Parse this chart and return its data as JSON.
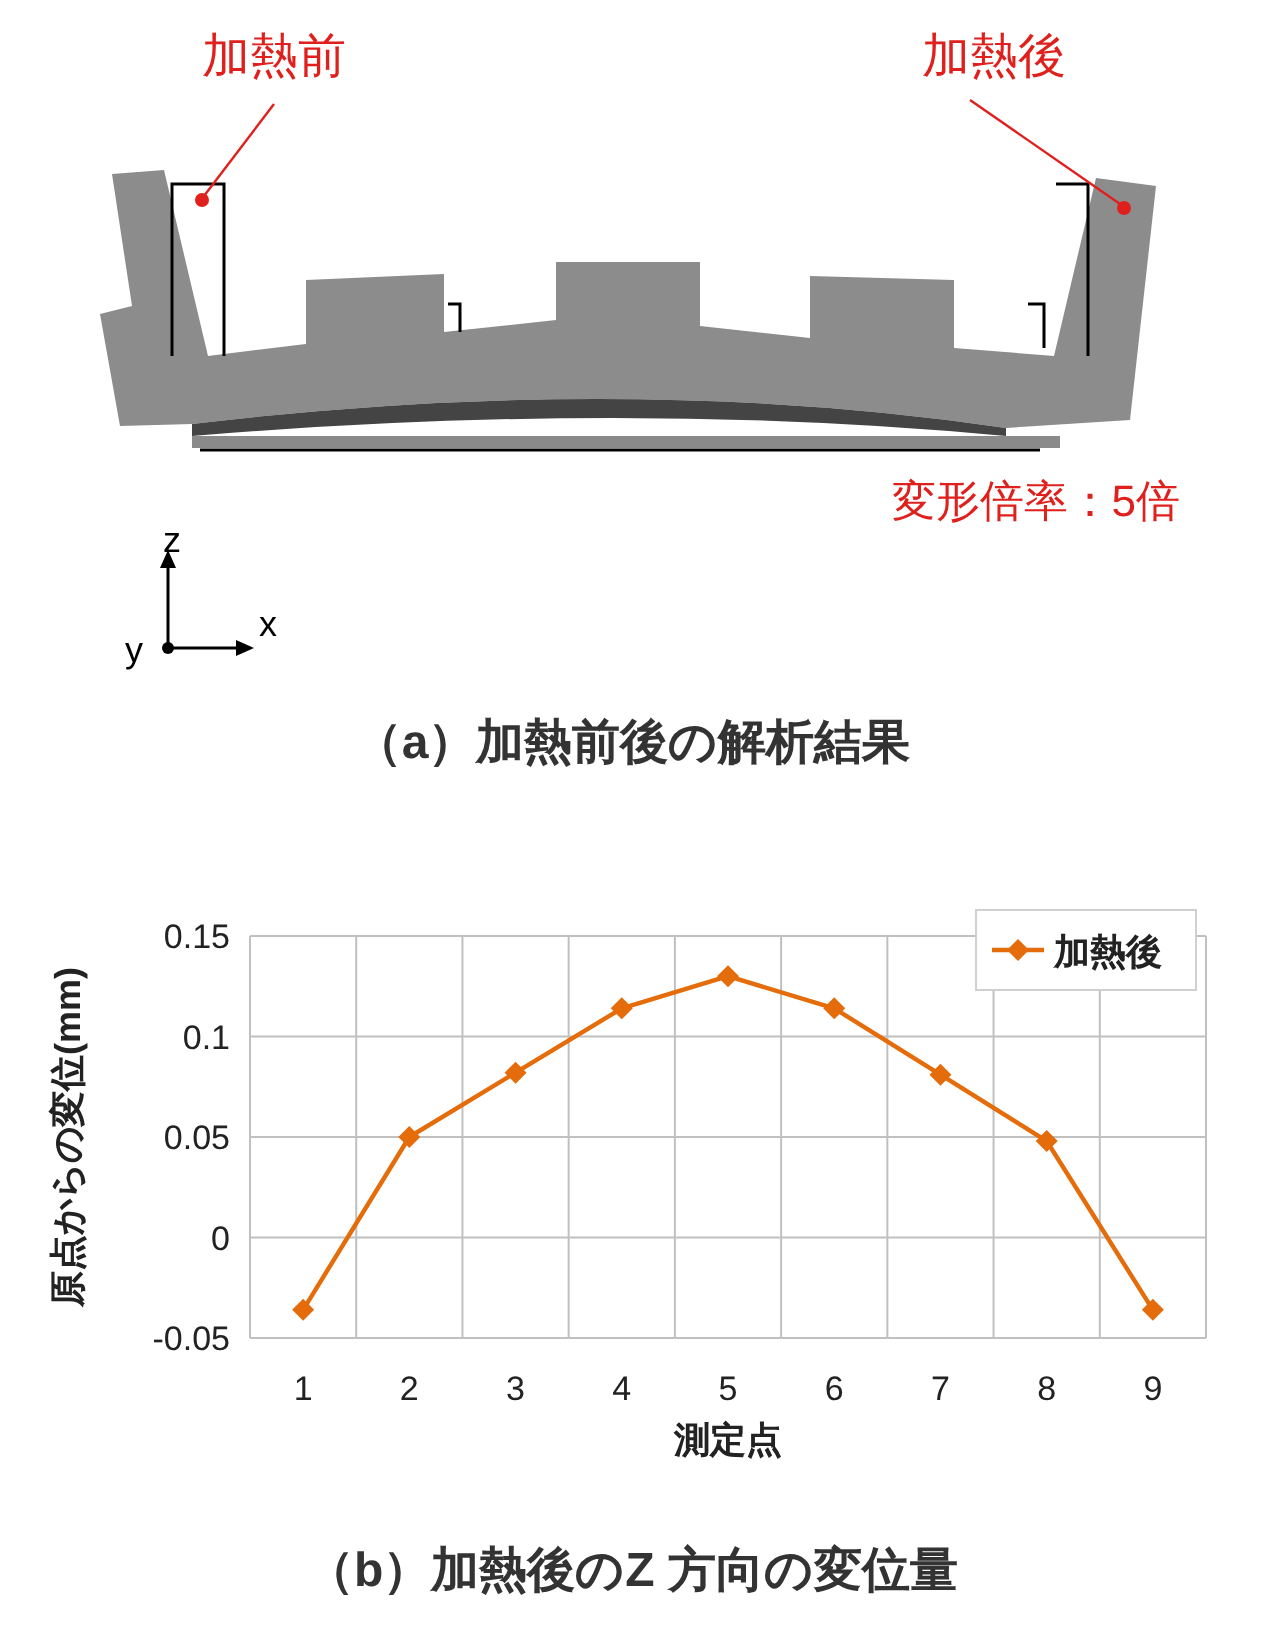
{
  "chart_data": {
    "type": "line",
    "xlabel": "測定点",
    "ylabel": "原点からの変位(mm)",
    "categories": [
      "1",
      "2",
      "3",
      "4",
      "5",
      "6",
      "7",
      "8",
      "9"
    ],
    "series": [
      {
        "name": "加熱後",
        "color": "#e46c0a",
        "values": [
          -0.036,
          0.05,
          0.082,
          0.114,
          0.13,
          0.114,
          0.081,
          0.048,
          -0.036
        ]
      }
    ],
    "ylim": [
      -0.05,
      0.15
    ],
    "yticks": [
      -0.05,
      0,
      0.05,
      0.1,
      0.15
    ],
    "grid": true,
    "legend": "top right",
    "marker": "diamond",
    "line_style": "solid",
    "annotations": [
      "加熱前",
      "加熱後",
      "変形倍率：5倍",
      "z",
      "x",
      "y",
      "（a）加熱前後の解析結果",
      "（b）加熱後のZ 方向の変位量"
    ]
  }
}
